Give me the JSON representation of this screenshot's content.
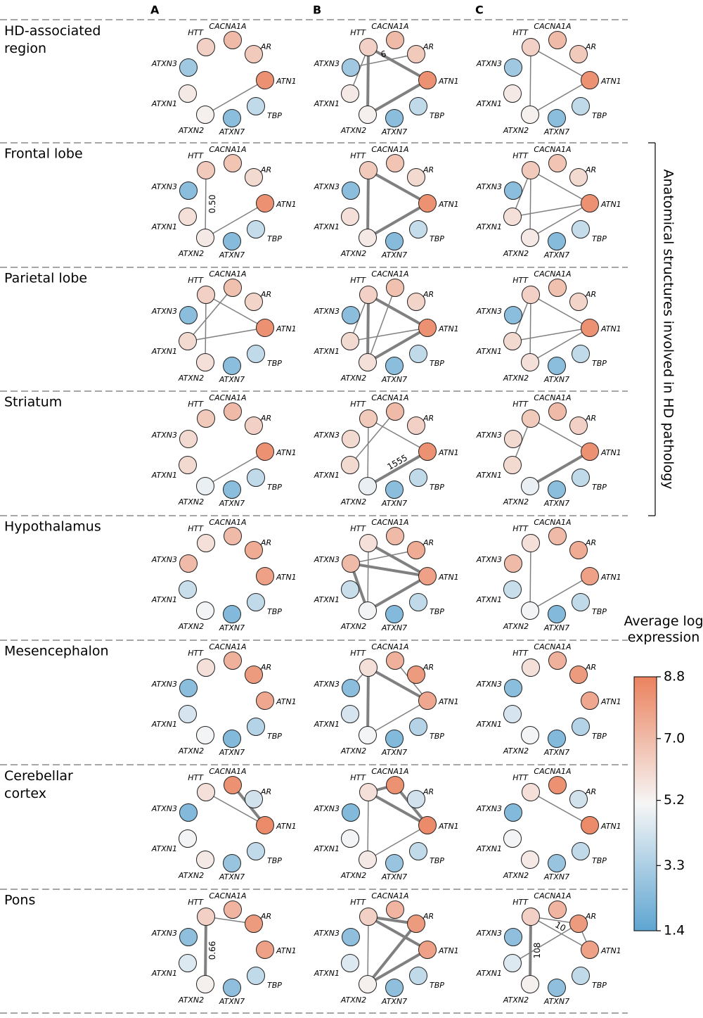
{
  "columns": [
    "A",
    "B",
    "C"
  ],
  "side_label": "Anatomical structures  involved in HD pathology",
  "genes": [
    "HTT",
    "CACNA1A",
    "AR",
    "ATN1",
    "TBP",
    "ATXN7",
    "ATXN2",
    "ATXN1",
    "ATXN3"
  ],
  "colorbar": {
    "title": "Average log expression",
    "lim": [
      1.4,
      8.8
    ],
    "ticks": [
      8.8,
      {
        "value": 7,
        "label": "7.0"
      },
      5.2,
      3.3,
      1.4
    ],
    "colors": [
      "#5ea5d1",
      "#f6f6f6",
      "#eb825e"
    ]
  },
  "rows": [
    {
      "label": "HD-associated region",
      "expression": [
        6.3,
        7.0,
        6.5,
        8.3,
        3.8,
        2.5,
        5.3,
        5.5,
        3.0
      ],
      "panels": [
        [
          {
            "from": "ATXN2",
            "to": "ATN1"
          }
        ],
        [
          {
            "from": "HTT",
            "to": "ATXN2",
            "strong": true
          },
          {
            "from": "HTT",
            "to": "ATN1",
            "strong": true
          },
          {
            "from": "ATXN2",
            "to": "ATN1",
            "strong": true
          },
          {
            "from": "ATXN3",
            "to": "AR",
            "label": "6"
          },
          {
            "from": "HTT",
            "to": "ATXN1"
          }
        ],
        [
          {
            "from": "HTT",
            "to": "ATXN2"
          },
          {
            "from": "HTT",
            "to": "ATN1"
          },
          {
            "from": "ATXN2",
            "to": "ATN1"
          }
        ]
      ]
    },
    {
      "label": "Frontal lobe",
      "expression": [
        6.5,
        6.7,
        6.0,
        8.3,
        3.9,
        2.4,
        5.5,
        5.8,
        2.5
      ],
      "panels": [
        [
          {
            "from": "HTT",
            "to": "ATXN2",
            "label": "0.50"
          },
          {
            "from": "ATXN2",
            "to": "ATN1"
          }
        ],
        [
          {
            "from": "HTT",
            "to": "ATXN2",
            "strong": true
          },
          {
            "from": "HTT",
            "to": "ATN1",
            "strong": true
          },
          {
            "from": "ATXN2",
            "to": "ATN1",
            "strong": true
          }
        ],
        [
          {
            "from": "HTT",
            "to": "ATXN2"
          },
          {
            "from": "HTT",
            "to": "ATN1"
          },
          {
            "from": "ATXN2",
            "to": "ATN1"
          },
          {
            "from": "HTT",
            "to": "ATXN1"
          },
          {
            "from": "ATXN1",
            "to": "ATN1"
          }
        ]
      ]
    },
    {
      "label": "Parietal lobe",
      "expression": [
        6.3,
        6.8,
        6.2,
        8.3,
        3.8,
        2.5,
        5.8,
        6.0,
        2.5
      ],
      "panels": [
        [
          {
            "from": "HTT",
            "to": "ATXN2"
          },
          {
            "from": "CACNA1A",
            "to": "ATXN1"
          },
          {
            "from": "HTT",
            "to": "ATN1"
          },
          {
            "from": "ATXN1",
            "to": "ATN1"
          }
        ],
        [
          {
            "from": "HTT",
            "to": "ATXN2",
            "strong": true
          },
          {
            "from": "HTT",
            "to": "ATN1",
            "strong": true
          },
          {
            "from": "CACNA1A",
            "to": "ATXN2"
          },
          {
            "from": "ATXN2",
            "to": "ATN1",
            "strong": true
          },
          {
            "from": "ATXN1",
            "to": "ATN1"
          },
          {
            "from": "HTT",
            "to": "ATXN1"
          }
        ],
        [
          {
            "from": "HTT",
            "to": "ATXN2"
          },
          {
            "from": "HTT",
            "to": "ATN1"
          },
          {
            "from": "ATXN1",
            "to": "ATN1"
          },
          {
            "from": "ATXN2",
            "to": "ATN1"
          },
          {
            "from": "HTT",
            "to": "ATXN1"
          }
        ]
      ]
    },
    {
      "label": "Striatum",
      "expression": [
        6.5,
        7.0,
        6.3,
        8.3,
        3.8,
        2.5,
        4.8,
        6.0,
        6.0
      ],
      "panels": [
        [
          {
            "from": "ATXN2",
            "to": "ATN1"
          }
        ],
        [
          {
            "from": "HTT",
            "to": "ATXN2"
          },
          {
            "from": "HTT",
            "to": "ATN1"
          },
          {
            "from": "ATXN2",
            "to": "ATN1",
            "strong": true,
            "label": "1555"
          },
          {
            "from": "CACNA1A",
            "to": "ATXN1"
          }
        ],
        [
          {
            "from": "HTT",
            "to": "ATXN1"
          },
          {
            "from": "HTT",
            "to": "ATN1"
          },
          {
            "from": "ATXN2",
            "to": "ATN1",
            "strong": true
          }
        ]
      ]
    },
    {
      "label": "Hypothalamus",
      "expression": [
        5.8,
        7.0,
        7.5,
        7.8,
        3.8,
        2.3,
        5.0,
        4.0,
        7.0
      ],
      "panels": [
        [],
        [
          {
            "from": "ATXN3",
            "to": "AR"
          },
          {
            "from": "ATXN3",
            "to": "ATN1",
            "strong": true
          },
          {
            "from": "HTT",
            "to": "ATN1",
            "strong": true
          },
          {
            "from": "ATXN3",
            "to": "ATXN2",
            "strong": true
          },
          {
            "from": "HTT",
            "to": "ATXN2"
          },
          {
            "from": "ATXN2",
            "to": "ATN1",
            "strong": true
          }
        ],
        [
          {
            "from": "HTT",
            "to": "ATXN2"
          },
          {
            "from": "ATXN2",
            "to": "ATN1"
          }
        ]
      ]
    },
    {
      "label": "Mesencephalon",
      "expression": [
        5.8,
        7.3,
        8.0,
        7.6,
        3.5,
        2.3,
        5.0,
        4.3,
        2.5
      ],
      "panels": [
        [],
        [
          {
            "from": "HTT",
            "to": "ATXN2",
            "strong": true
          },
          {
            "from": "HTT",
            "to": "ATN1",
            "strong": true
          },
          {
            "from": "CACNA1A",
            "to": "ATN1"
          },
          {
            "from": "ATXN2",
            "to": "ATN1"
          },
          {
            "from": "HTT",
            "to": "ATXN3"
          }
        ],
        []
      ]
    },
    {
      "label": "Cerebellar cortex",
      "expression": [
        5.8,
        8.3,
        4.2,
        8.5,
        3.8,
        2.8,
        5.5,
        5.0,
        2.3
      ],
      "panels": [
        [
          {
            "from": "CACNA1A",
            "to": "ATN1",
            "strong": true
          },
          {
            "from": "HTT",
            "to": "ATN1"
          }
        ],
        [
          {
            "from": "HTT",
            "to": "CACNA1A",
            "strong": true
          },
          {
            "from": "CACNA1A",
            "to": "ATN1",
            "strong": true
          },
          {
            "from": "HTT",
            "to": "ATN1",
            "strong": true
          },
          {
            "from": "HTT",
            "to": "ATXN2"
          },
          {
            "from": "ATXN2",
            "to": "ATN1"
          }
        ],
        [
          {
            "from": "HTT",
            "to": "ATN1"
          }
        ]
      ]
    },
    {
      "label": "Pons",
      "expression": [
        6.3,
        7.2,
        8.0,
        7.8,
        3.8,
        2.6,
        5.3,
        4.5,
        2.6
      ],
      "panels": [
        [
          {
            "from": "HTT",
            "to": "ATXN2",
            "strong": true,
            "label": "0.66"
          },
          {
            "from": "HTT",
            "to": "AR"
          }
        ],
        [
          {
            "from": "HTT",
            "to": "AR",
            "strong": true
          },
          {
            "from": "HTT",
            "to": "ATN1",
            "strong": true
          },
          {
            "from": "AR",
            "to": "ATXN2",
            "strong": true
          },
          {
            "from": "ATN1",
            "to": "ATXN2",
            "strong": true
          },
          {
            "from": "HTT",
            "to": "ATXN2"
          }
        ],
        [
          {
            "from": "HTT",
            "to": "ATXN2",
            "strong": true,
            "label": "108"
          },
          {
            "from": "HTT",
            "to": "ATN1",
            "label": "10"
          },
          {
            "from": "AR",
            "to": "ATXN1"
          },
          {
            "from": "HTT",
            "to": "AR"
          },
          {
            "from": "AR",
            "to": "ATN1"
          }
        ]
      ]
    }
  ]
}
